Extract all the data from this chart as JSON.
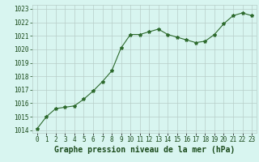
{
  "x": [
    0,
    1,
    2,
    3,
    4,
    5,
    6,
    7,
    8,
    9,
    10,
    11,
    12,
    13,
    14,
    15,
    16,
    17,
    18,
    19,
    20,
    21,
    22,
    23
  ],
  "y": [
    1014.1,
    1015.0,
    1015.6,
    1015.7,
    1015.8,
    1016.3,
    1016.9,
    1017.6,
    1018.4,
    1020.1,
    1021.1,
    1021.1,
    1021.3,
    1021.5,
    1021.1,
    1020.9,
    1020.7,
    1020.5,
    1020.6,
    1021.1,
    1021.9,
    1022.5,
    1022.7,
    1022.5
  ],
  "line_color": "#2d6a2d",
  "marker": "*",
  "marker_size": 3,
  "bg_color": "#d8f5f0",
  "grid_color": "#b8cec8",
  "xlabel": "Graphe pression niveau de la mer (hPa)",
  "xlabel_color": "#1a4a1a",
  "xlabel_fontsize": 7,
  "ytick_min": 1014,
  "ytick_max": 1023,
  "ytick_step": 1,
  "xtick_labels": [
    "0",
    "1",
    "2",
    "3",
    "4",
    "5",
    "6",
    "7",
    "8",
    "9",
    "10",
    "11",
    "12",
    "13",
    "14",
    "15",
    "16",
    "17",
    "18",
    "19",
    "20",
    "21",
    "22",
    "23"
  ],
  "tick_fontsize": 5.5,
  "ylabel_color": "#1a4a1a"
}
